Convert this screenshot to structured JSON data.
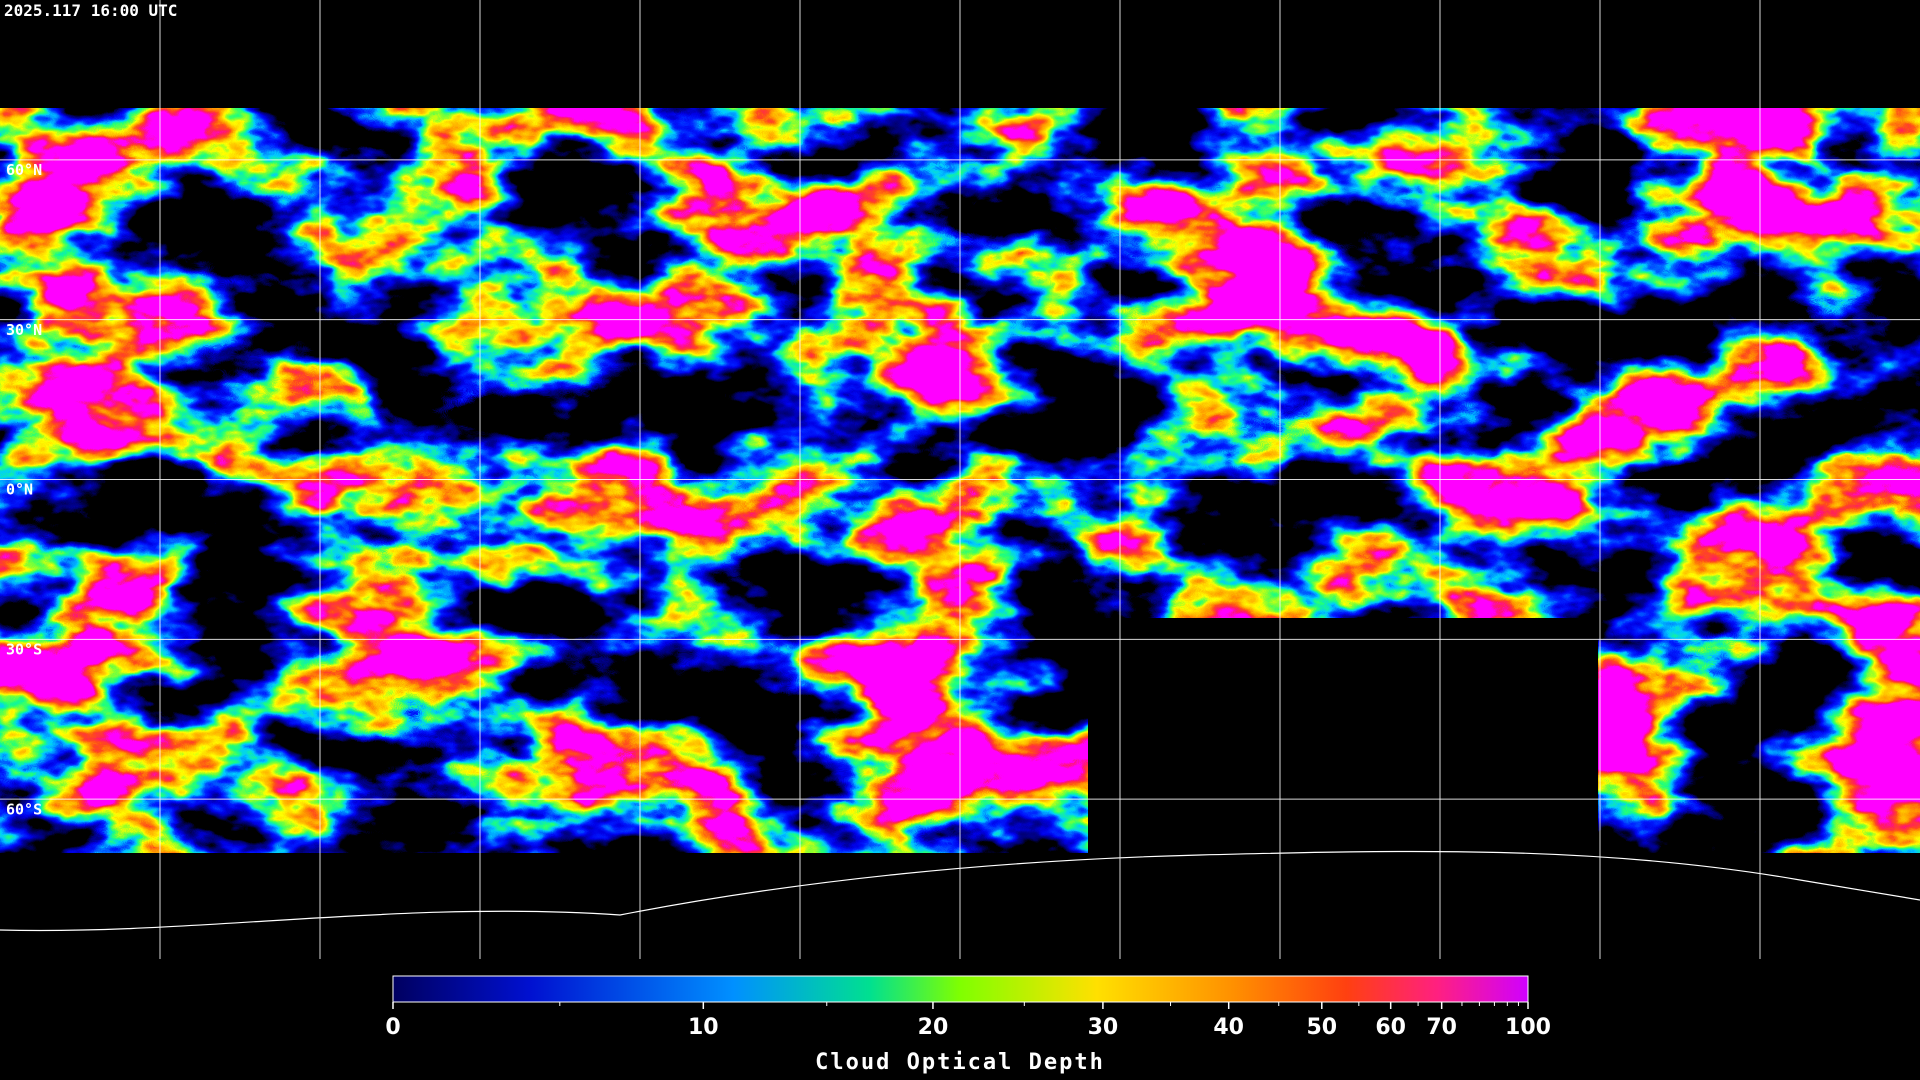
{
  "timestamp": "2025.117 16:00 UTC",
  "map": {
    "latlim": [
      -90,
      90
    ],
    "lat_ticks": [
      {
        "value": 60,
        "label": "60°N"
      },
      {
        "value": 30,
        "label": "30°N"
      },
      {
        "value": 0,
        "label": "0°N"
      },
      {
        "value": -30,
        "label": "30°S"
      },
      {
        "value": -60,
        "label": "60°S"
      }
    ]
  },
  "colorbar": {
    "title": "Cloud Optical Depth",
    "lim": [
      0,
      100
    ],
    "ticks": [
      0,
      10,
      20,
      30,
      40,
      50,
      60,
      70,
      100
    ],
    "minor_ticks": [
      5,
      15,
      25,
      35,
      45,
      55,
      65,
      75,
      80,
      85,
      90,
      95
    ]
  }
}
